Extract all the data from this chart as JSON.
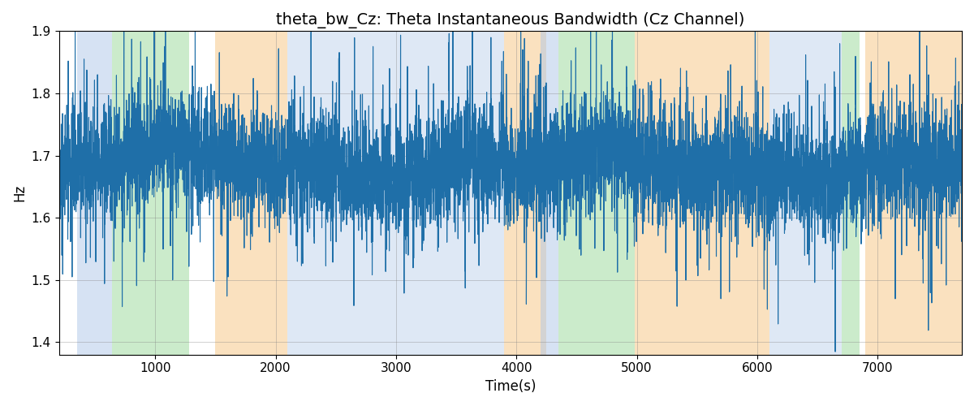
{
  "title": "theta_bw_Cz: Theta Instantaneous Bandwidth (Cz Channel)",
  "xlabel": "Time(s)",
  "ylabel": "Hz",
  "xlim": [
    200,
    7700
  ],
  "ylim": [
    1.38,
    1.9
  ],
  "yticks": [
    1.4,
    1.5,
    1.6,
    1.7,
    1.8,
    1.9
  ],
  "xticks": [
    1000,
    2000,
    3000,
    4000,
    5000,
    6000,
    7000
  ],
  "line_color": "#1f6fa8",
  "line_width": 0.8,
  "background_color": "#ffffff",
  "bands": [
    {
      "start": 350,
      "end": 640,
      "color": "#aec6e8",
      "alpha": 0.5
    },
    {
      "start": 640,
      "end": 1280,
      "color": "#98d898",
      "alpha": 0.5
    },
    {
      "start": 1500,
      "end": 2100,
      "color": "#f7c98b",
      "alpha": 0.55
    },
    {
      "start": 2100,
      "end": 3900,
      "color": "#aec6e8",
      "alpha": 0.4
    },
    {
      "start": 3900,
      "end": 4250,
      "color": "#f7c98b",
      "alpha": 0.55
    },
    {
      "start": 4200,
      "end": 4350,
      "color": "#aec6e8",
      "alpha": 0.5
    },
    {
      "start": 4350,
      "end": 4980,
      "color": "#98d898",
      "alpha": 0.5
    },
    {
      "start": 4980,
      "end": 6100,
      "color": "#f7c98b",
      "alpha": 0.55
    },
    {
      "start": 6100,
      "end": 6700,
      "color": "#aec6e8",
      "alpha": 0.4
    },
    {
      "start": 6700,
      "end": 6850,
      "color": "#98d898",
      "alpha": 0.5
    },
    {
      "start": 6900,
      "end": 7700,
      "color": "#f7c98b",
      "alpha": 0.55
    }
  ],
  "seed": 42,
  "n_points": 7500,
  "t_start": 200,
  "t_end": 7700,
  "signal_mean": 1.685,
  "title_fontsize": 14,
  "label_fontsize": 12,
  "tick_fontsize": 11
}
